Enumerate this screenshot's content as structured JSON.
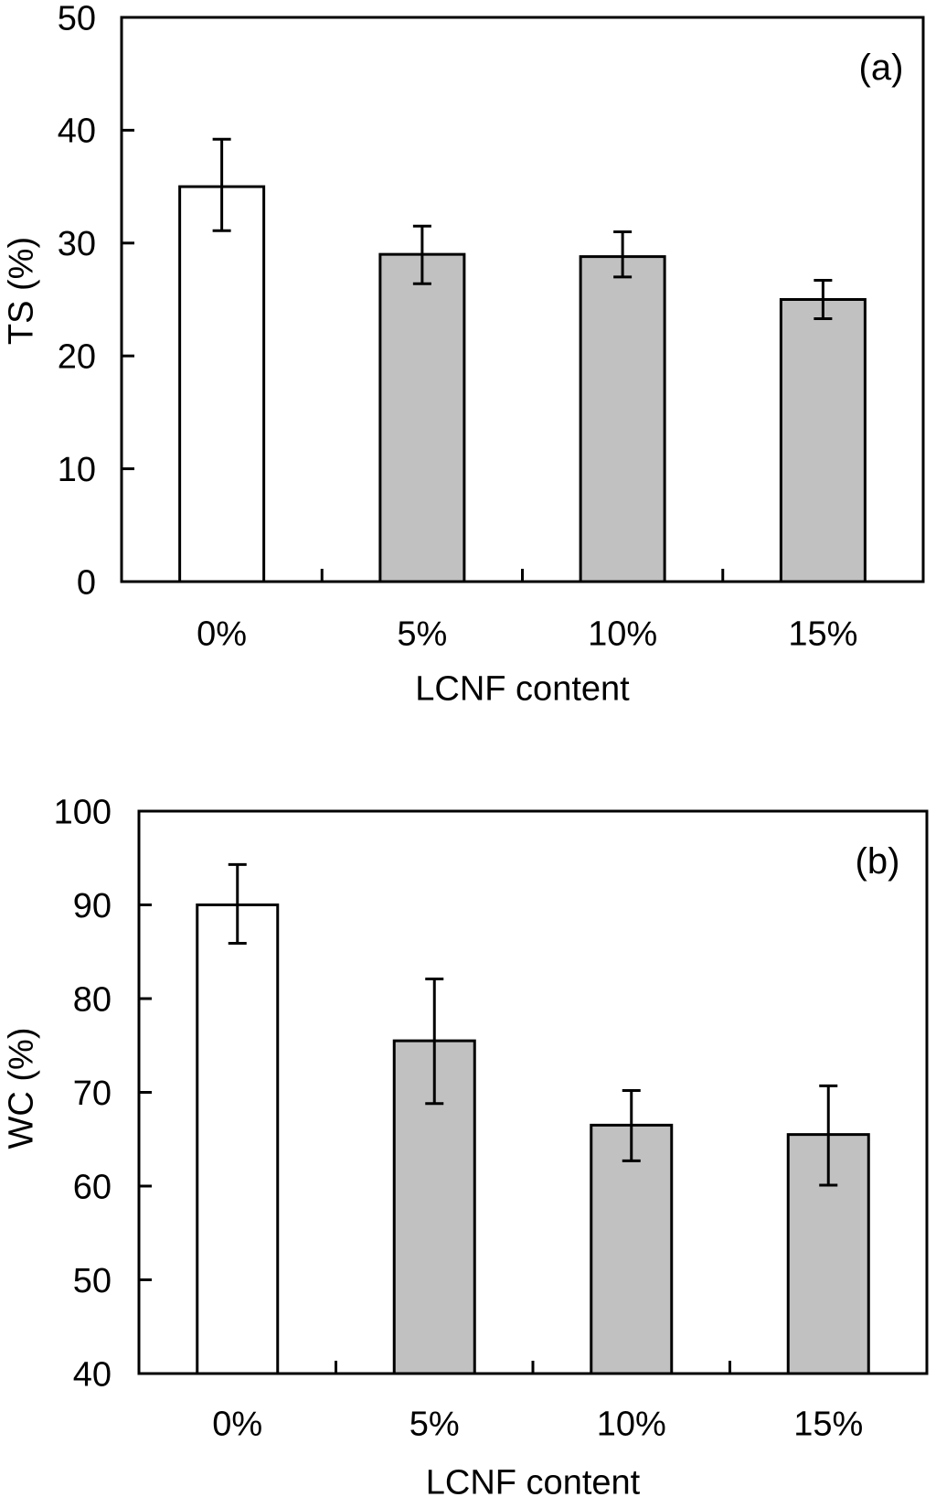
{
  "chart_data": [
    {
      "type": "bar",
      "panel_label": "(a)",
      "title": "",
      "xlabel": "LCNF content",
      "ylabel": "TS (%)",
      "categories": [
        "0%",
        "5%",
        "10%",
        "15%"
      ],
      "values": [
        35.0,
        29.0,
        28.8,
        25.0
      ],
      "errors_plus": [
        4.2,
        2.5,
        2.2,
        1.7
      ],
      "errors_minus": [
        3.9,
        2.6,
        1.8,
        1.7
      ],
      "ylim": [
        0,
        50
      ],
      "yticks": [
        0,
        10,
        20,
        30,
        40,
        50
      ],
      "bar_fills": [
        "#ffffff",
        "#c1c1c1",
        "#c1c1c1",
        "#c1c1c1"
      ],
      "bar_edge_color": "#000000",
      "error_bar_color": "#000000",
      "grid": false,
      "legend": "none"
    },
    {
      "type": "bar",
      "panel_label": "(b)",
      "title": "",
      "xlabel": "LCNF content",
      "ylabel": "WC (%)",
      "categories": [
        "0%",
        "5%",
        "10%",
        "15%"
      ],
      "values": [
        90.0,
        75.5,
        66.5,
        65.5
      ],
      "errors_plus": [
        4.3,
        6.6,
        3.7,
        5.2
      ],
      "errors_minus": [
        4.1,
        6.7,
        3.8,
        5.4
      ],
      "ylim": [
        40,
        100
      ],
      "yticks": [
        40,
        50,
        60,
        70,
        80,
        90,
        100
      ],
      "bar_fills": [
        "#ffffff",
        "#c1c1c1",
        "#c1c1c1",
        "#c1c1c1"
      ],
      "bar_edge_color": "#000000",
      "error_bar_color": "#000000",
      "grid": false,
      "legend": "none"
    }
  ]
}
